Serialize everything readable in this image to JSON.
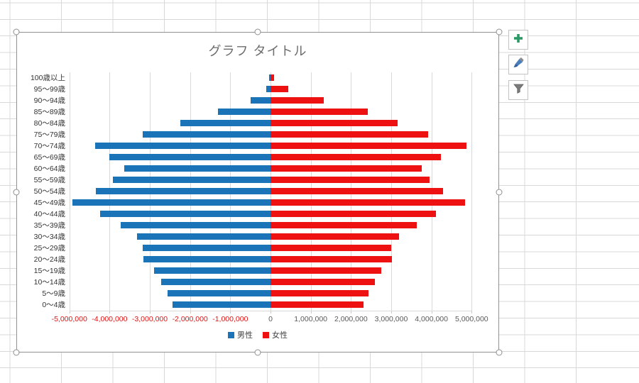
{
  "chart": {
    "title": "グラフ タイトル",
    "legend_position": "bottom"
  },
  "chart_data": {
    "type": "bar",
    "subtype": "horizontal-population-pyramid",
    "title": "グラフ タイトル",
    "categories": [
      "100歳以上",
      "95～99歳",
      "90～94歳",
      "85～89歳",
      "80～84歳",
      "75～79歳",
      "70～74歳",
      "65～69歳",
      "60～64歳",
      "55～59歳",
      "50～54歳",
      "45～49歳",
      "40～44歳",
      "35～39歳",
      "30～34歳",
      "25～29歳",
      "20～24歳",
      "15～19歳",
      "10～14歳",
      "5～9歳",
      "0～4歳"
    ],
    "series": [
      {
        "name": "男性",
        "color": "#1b73b8",
        "direction": "left",
        "values": [
          40000,
          110000,
          500000,
          1310000,
          2250000,
          3170000,
          4360000,
          4000000,
          3640000,
          3910000,
          4350000,
          4920000,
          4240000,
          3730000,
          3320000,
          3170000,
          3160000,
          2890000,
          2720000,
          2560000,
          2430000
        ]
      },
      {
        "name": "女性",
        "color": "#ee1111",
        "direction": "right",
        "values": [
          80000,
          440000,
          1320000,
          2420000,
          3160000,
          3910000,
          4870000,
          4230000,
          3760000,
          3950000,
          4290000,
          4830000,
          4120000,
          3630000,
          3190000,
          3000000,
          3010000,
          2750000,
          2590000,
          2430000,
          2310000
        ]
      }
    ],
    "x_axis": {
      "min": -5000000,
      "max": 5000000,
      "tick_interval": 1000000,
      "tick_labels": [
        "-5,000,000",
        "-4,000,000",
        "-3,000,000",
        "-2,000,000",
        "-1,000,000",
        "0",
        "1,000,000",
        "2,000,000",
        "3,000,000",
        "4,000,000",
        "5,000,000"
      ],
      "negative_label_color": "#e01313",
      "positive_label_color": "#595959"
    },
    "gridlines": true,
    "legend_position": "bottom",
    "title_color": "#6d6d6d"
  },
  "side_buttons": [
    {
      "id": "chart-elements",
      "icon": "plus-icon",
      "color": "#2b9a66"
    },
    {
      "id": "chart-styles",
      "icon": "brush-icon",
      "color": "#4a7ebb"
    },
    {
      "id": "chart-filters",
      "icon": "funnel-icon",
      "color": "#7b7b7b"
    }
  ]
}
